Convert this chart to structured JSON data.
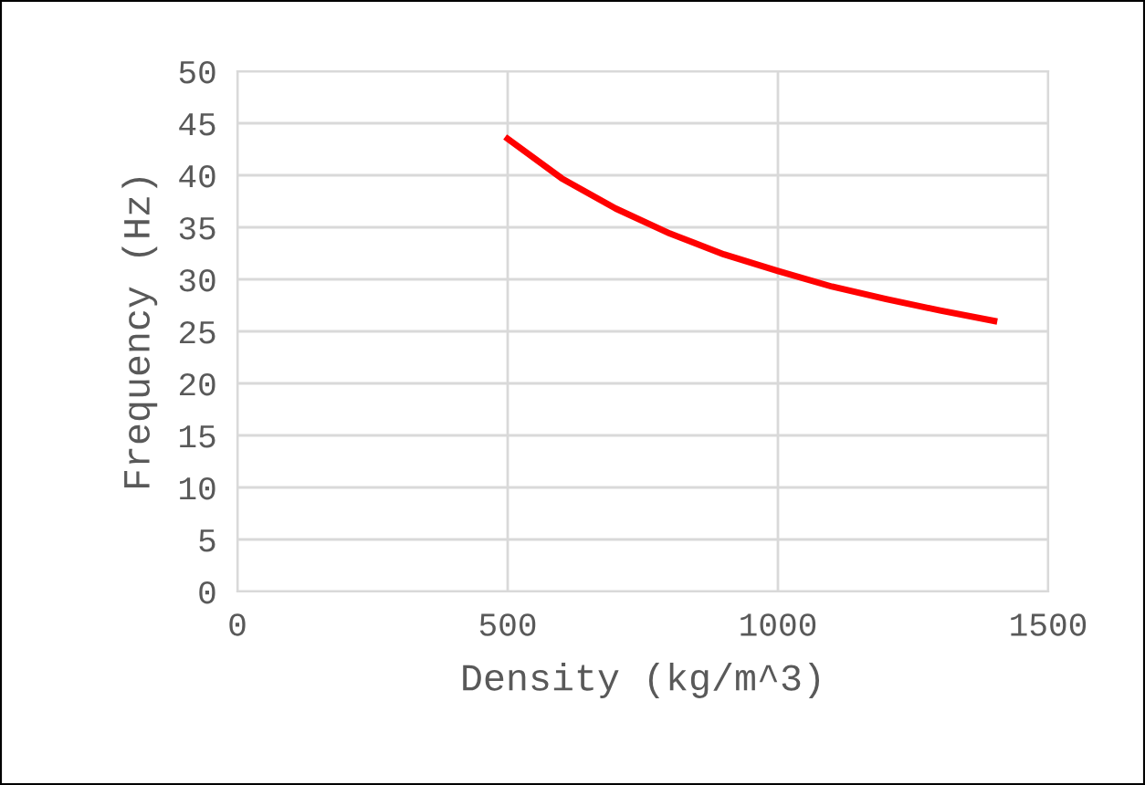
{
  "chart_data": {
    "type": "line",
    "xlabel": "Density (kg/m^3)",
    "ylabel": "Frequency (Hz)",
    "x": [
      500,
      600,
      700,
      800,
      900,
      1000,
      1100,
      1200,
      1300,
      1400
    ],
    "series": [
      {
        "color": "#ff0000",
        "values": [
          43.5,
          39.7,
          36.8,
          34.4,
          32.4,
          30.8,
          29.3,
          28.1,
          27.0,
          26.0
        ]
      }
    ],
    "xlim": [
      0,
      1500
    ],
    "xticks": [
      0,
      500,
      1000,
      1500
    ],
    "ylim": [
      0,
      50
    ],
    "yticks": [
      0,
      5,
      10,
      15,
      20,
      25,
      30,
      35,
      40,
      45,
      50
    ],
    "grid": true,
    "marker": "none",
    "line_style": "solid"
  }
}
